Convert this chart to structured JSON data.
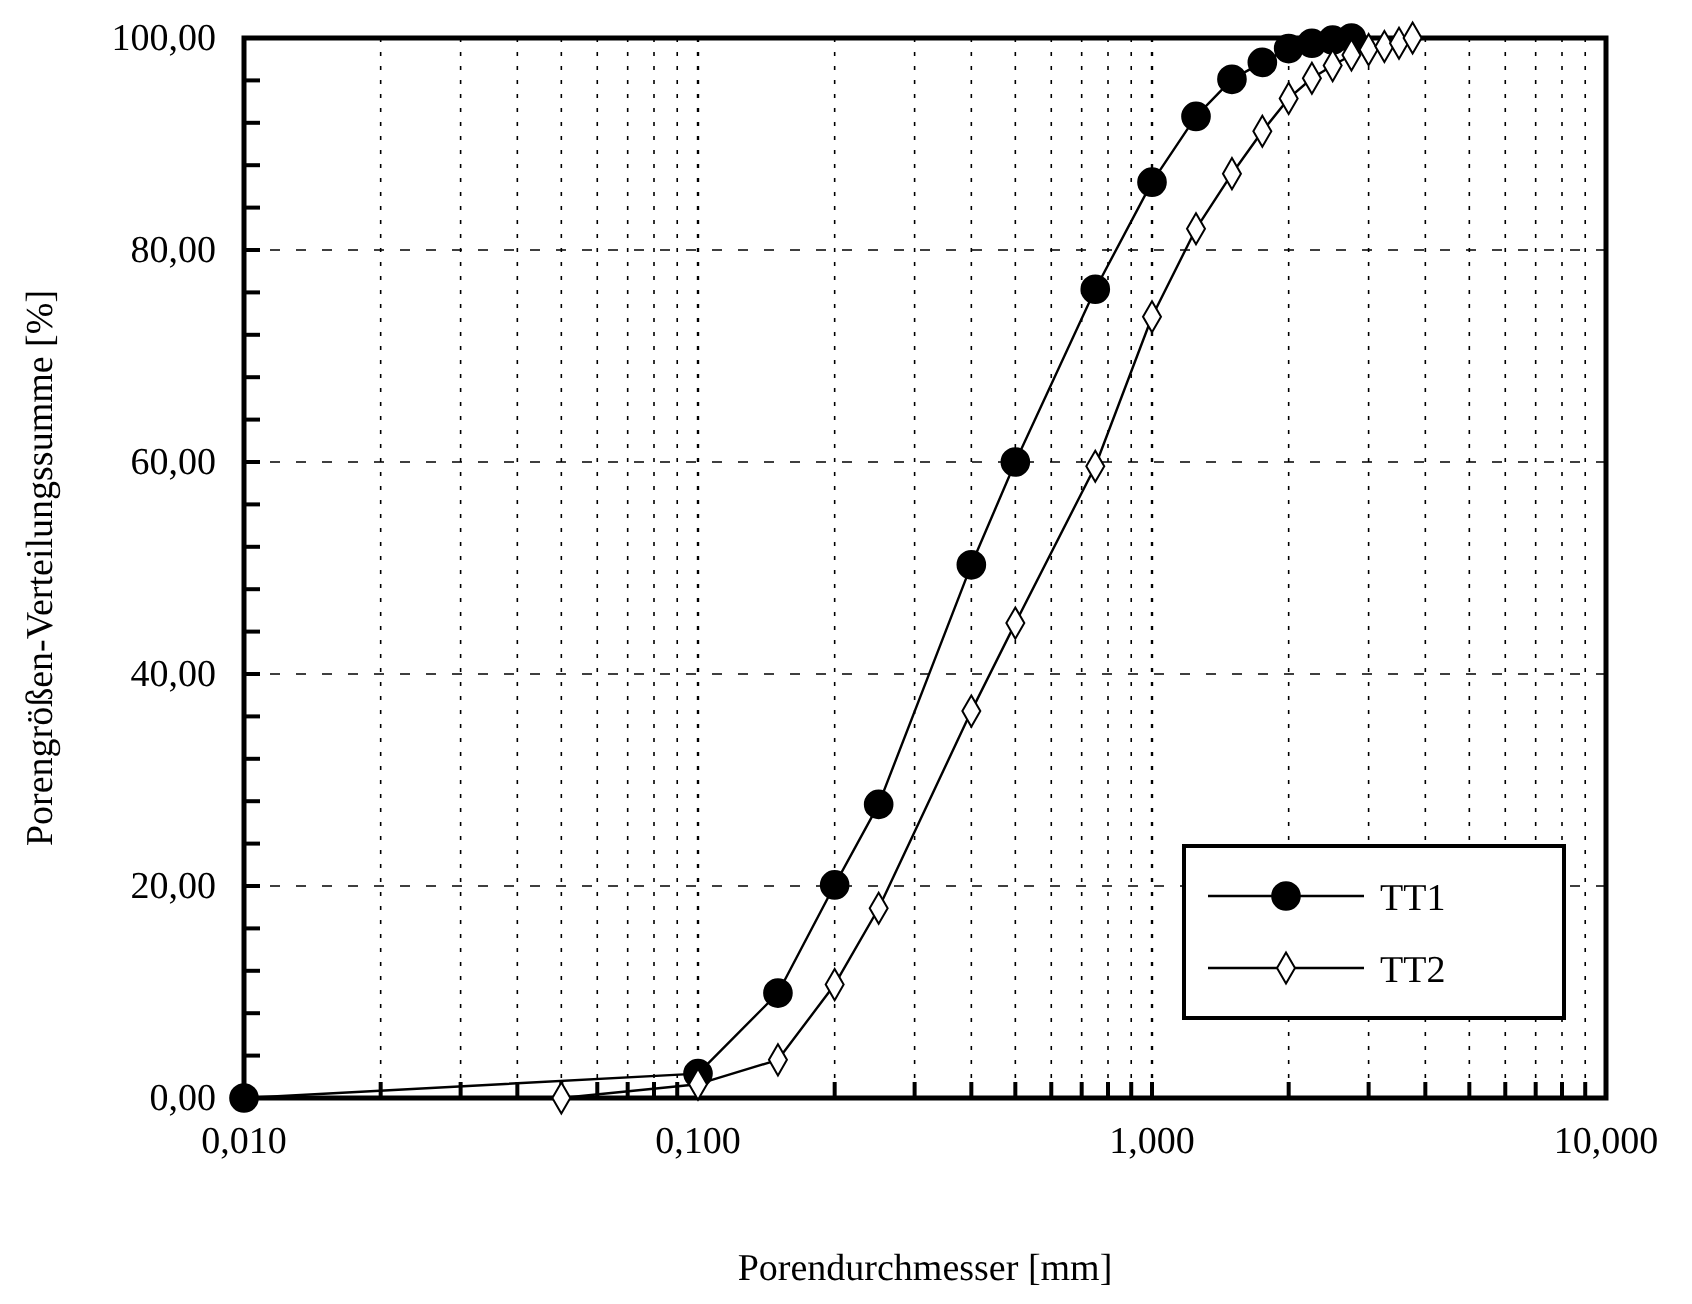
{
  "chart_data": {
    "type": "line",
    "xlabel": "Porendurchmesser [mm]",
    "ylabel": "Porengrößen-Verteilungssumme [%]",
    "log": "x",
    "grid": true,
    "legend": "bottom right",
    "line_style": "solid",
    "xlim": [
      0.01,
      10
    ],
    "ylim": [
      0,
      100
    ],
    "xticks": [
      {
        "value": 0.01,
        "label": "0,010"
      },
      {
        "value": 0.02,
        "label": null
      },
      {
        "value": 0.03,
        "label": null
      },
      {
        "value": 0.04,
        "label": null
      },
      {
        "value": 0.05,
        "label": null
      },
      {
        "value": 0.06,
        "label": null
      },
      {
        "value": 0.07,
        "label": null
      },
      {
        "value": 0.08,
        "label": null
      },
      {
        "value": 0.09,
        "label": null
      },
      {
        "value": 0.1,
        "label": "0,100"
      },
      {
        "value": 0.2,
        "label": null
      },
      {
        "value": 0.3,
        "label": null
      },
      {
        "value": 0.4,
        "label": null
      },
      {
        "value": 0.5,
        "label": null
      },
      {
        "value": 0.6,
        "label": null
      },
      {
        "value": 0.7,
        "label": null
      },
      {
        "value": 0.8,
        "label": null
      },
      {
        "value": 0.9,
        "label": null
      },
      {
        "value": 1,
        "label": "1,000"
      },
      {
        "value": 2,
        "label": null
      },
      {
        "value": 3,
        "label": null
      },
      {
        "value": 4,
        "label": null
      },
      {
        "value": 5,
        "label": null
      },
      {
        "value": 6,
        "label": null
      },
      {
        "value": 7,
        "label": null
      },
      {
        "value": 8,
        "label": null
      },
      {
        "value": 9,
        "label": null
      },
      {
        "value": 10,
        "label": "10,000"
      }
    ],
    "yticks": [
      {
        "value": 0,
        "label": "0,00"
      },
      {
        "value": 4,
        "label": null
      },
      {
        "value": 8,
        "label": null
      },
      {
        "value": 12,
        "label": null
      },
      {
        "value": 16,
        "label": null
      },
      {
        "value": 20,
        "label": "20,00"
      },
      {
        "value": 24,
        "label": null
      },
      {
        "value": 28,
        "label": null
      },
      {
        "value": 32,
        "label": null
      },
      {
        "value": 36,
        "label": null
      },
      {
        "value": 40,
        "label": "40,00"
      },
      {
        "value": 44,
        "label": null
      },
      {
        "value": 48,
        "label": null
      },
      {
        "value": 52,
        "label": null
      },
      {
        "value": 56,
        "label": null
      },
      {
        "value": 60,
        "label": "60,00"
      },
      {
        "value": 64,
        "label": null
      },
      {
        "value": 68,
        "label": null
      },
      {
        "value": 72,
        "label": null
      },
      {
        "value": 76,
        "label": null
      },
      {
        "value": 80,
        "label": "80,00"
      },
      {
        "value": 84,
        "label": null
      },
      {
        "value": 88,
        "label": null
      },
      {
        "value": 92,
        "label": null
      },
      {
        "value": 96,
        "label": null
      },
      {
        "value": 100,
        "label": "100,00"
      }
    ],
    "series": [
      {
        "name": "TT1",
        "color": "#000000",
        "marker": "circle",
        "x": [
          0.01,
          0.1,
          0.15,
          0.2,
          0.25,
          0.4,
          0.5,
          0.75,
          1,
          1.25,
          1.5,
          1.75,
          2,
          2.25,
          2.5,
          2.75
        ],
        "values": [
          0,
          2.3,
          9.9,
          20.1,
          27.7,
          50.3,
          60,
          76.3,
          86.4,
          92.6,
          96.1,
          97.7,
          99,
          99.5,
          99.8,
          100
        ]
      },
      {
        "name": "TT2",
        "color": "#000000",
        "marker": "diamond",
        "x": [
          0.05,
          0.1,
          0.15,
          0.2,
          0.25,
          0.4,
          0.5,
          0.75,
          1,
          1.25,
          1.5,
          1.75,
          2,
          2.25,
          2.5,
          2.75,
          3,
          3.25,
          3.5,
          3.75
        ],
        "values": [
          0,
          1.3,
          3.6,
          10.7,
          17.9,
          36.5,
          44.8,
          59.6,
          73.7,
          82,
          87.2,
          91.2,
          94.3,
          96.2,
          97.4,
          98.4,
          98.9,
          99.2,
          99.5,
          100
        ]
      }
    ]
  }
}
